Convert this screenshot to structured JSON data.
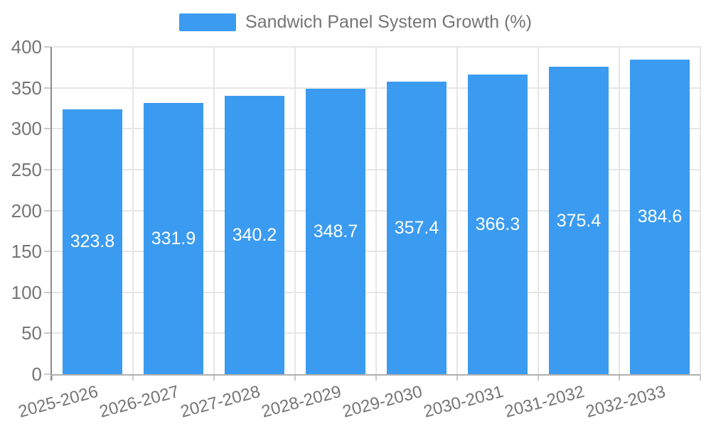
{
  "legend": {
    "label": "Sandwich Panel System Growth (%)"
  },
  "colors": {
    "bar": "#3b9bf0",
    "axis_text": "#757575",
    "grid_line": "#e6e6e6",
    "y_axis_line": "#8c8c8c",
    "x_axis_line": "#b0b0b0",
    "tick": "#c9c9c9",
    "value_label": "#ffffff",
    "background": "#ffffff"
  },
  "chart_data": {
    "type": "bar",
    "title": "Sandwich Panel System Growth (%)",
    "categories": [
      "2025-2026",
      "2026-2027",
      "2027-2028",
      "2028-2029",
      "2029-2030",
      "2030-2031",
      "2031-2032",
      "2032-2033"
    ],
    "values": [
      323.8,
      331.9,
      340.2,
      348.7,
      357.4,
      366.3,
      375.4,
      384.6
    ],
    "value_labels": [
      "323.8",
      "331.9",
      "340.2",
      "348.7",
      "357.4",
      "366.3",
      "375.4",
      "384.6"
    ],
    "xlabel": "",
    "ylabel": "",
    "ylim": [
      0,
      400
    ],
    "yticks": [
      0,
      50,
      100,
      150,
      200,
      250,
      300,
      350,
      400
    ],
    "grid": true,
    "legend_position": "top-center",
    "value_label_position": "inside-center",
    "x_label_rotation_deg": -15
  }
}
